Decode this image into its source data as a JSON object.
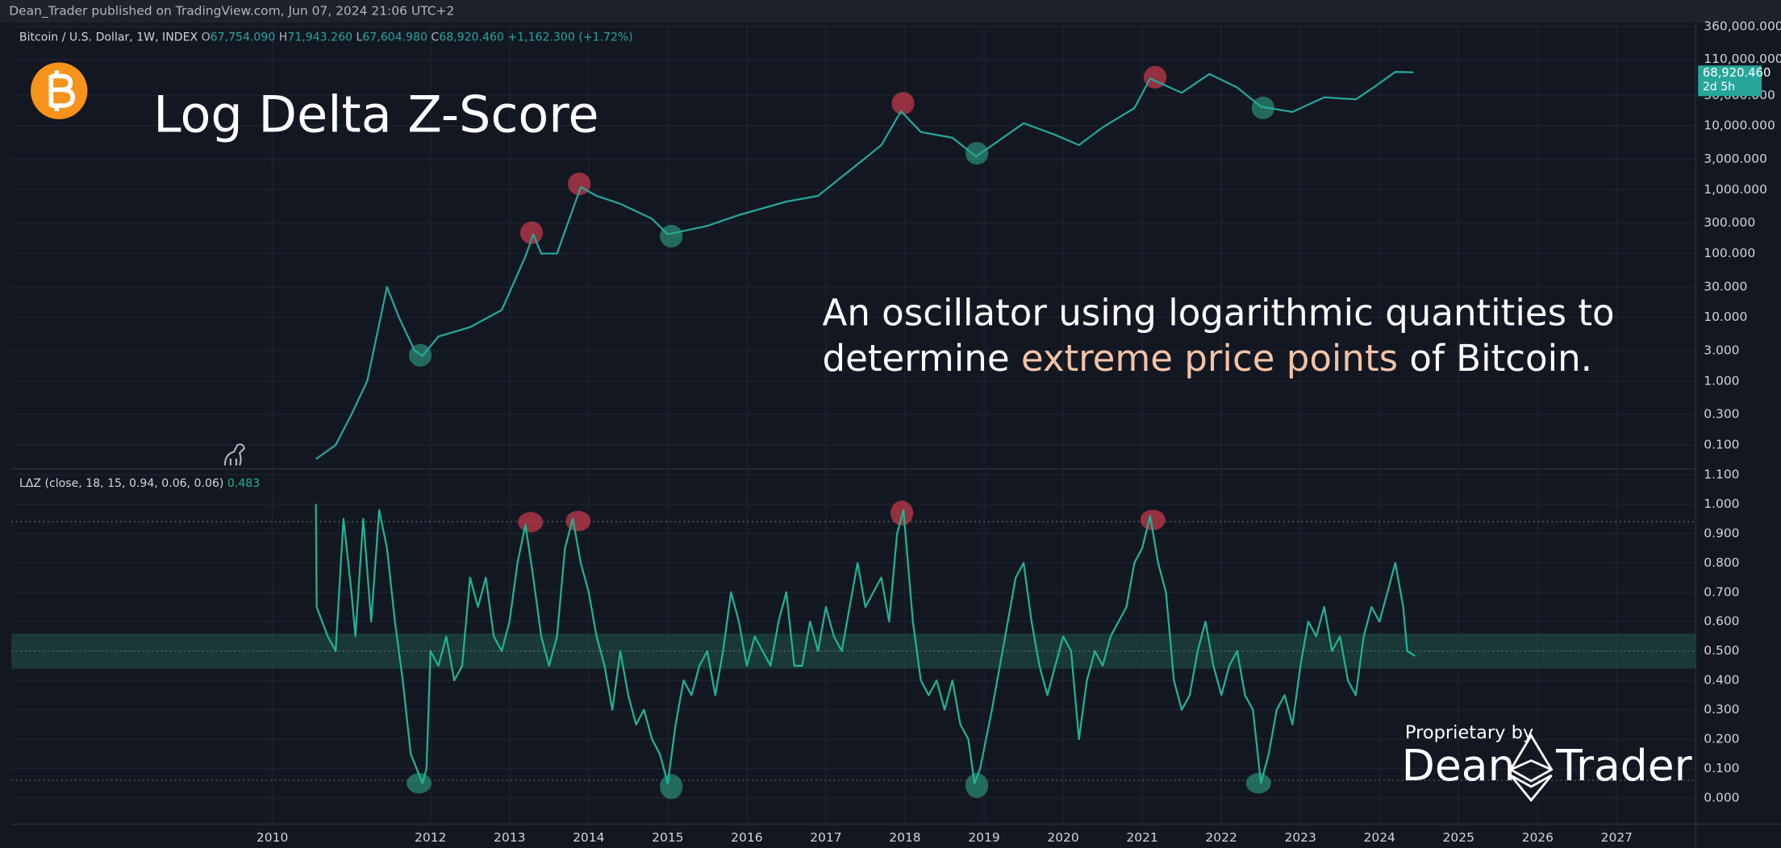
{
  "header": "Dean_Trader published on TradingView.com, Jun 07, 2024 21:06 UTC+2",
  "title": "Log Delta Z-Score",
  "description": [
    "An oscillator using logarithmic quantities to",
    "determine",
    "extreme price points",
    "of Bitcoin."
  ],
  "branding": {
    "by": "Proprietary by",
    "left": "Dean",
    "right": "Trader"
  },
  "chart_data": [
    {
      "type": "line",
      "name": "Bitcoin / U.S. Dollar, 1W, INDEX",
      "ohlc": [
        {
          "label": "O",
          "value": "67,754.090"
        },
        {
          "label": "H",
          "value": "71,943.260"
        },
        {
          "label": "L",
          "value": "67,604.980"
        },
        {
          "label": "C",
          "value": "68,920.460"
        }
      ],
      "change": "+1,162.300 (+1.72%)",
      "last_label": "68,920.460",
      "countdown": "2d 5h",
      "log_scale": true,
      "color": "#26a69a",
      "xlim": [
        2006.7,
        2028.0
      ],
      "ylim": [
        0.044,
        380000
      ],
      "yticks": [
        {
          "value": 360000,
          "label": "360,000.000"
        },
        {
          "value": 110000,
          "label": "110,000.000"
        },
        {
          "value": 30000,
          "label": "30,000.000"
        },
        {
          "value": 10000,
          "label": "10,000.000"
        },
        {
          "value": 3000,
          "label": "3,000.000"
        },
        {
          "value": 1000,
          "label": "1,000.000"
        },
        {
          "value": 300,
          "label": "300.000"
        },
        {
          "value": 100,
          "label": "100.000"
        },
        {
          "value": 30,
          "label": "30.000"
        },
        {
          "value": 10,
          "label": "10.000"
        },
        {
          "value": 3,
          "label": "3.000"
        },
        {
          "value": 1,
          "label": "1.000"
        },
        {
          "value": 0.3,
          "label": "0.300"
        },
        {
          "value": 0.1,
          "label": "0.100"
        }
      ],
      "x": [
        2010.55,
        2010.8,
        2011.0,
        2011.2,
        2011.4,
        2011.45,
        2011.6,
        2011.8,
        2011.9,
        2012.1,
        2012.5,
        2012.9,
        2013.2,
        2013.3,
        2013.4,
        2013.6,
        2013.9,
        2014.1,
        2014.4,
        2014.8,
        2015.0,
        2015.5,
        2015.9,
        2016.5,
        2016.9,
        2017.4,
        2017.7,
        2017.95,
        2018.2,
        2018.6,
        2018.9,
        2019.5,
        2019.9,
        2020.2,
        2020.5,
        2020.9,
        2021.1,
        2021.5,
        2021.85,
        2022.2,
        2022.5,
        2022.9,
        2023.3,
        2023.7,
        2023.95,
        2024.2,
        2024.43
      ],
      "values": [
        0.06,
        0.1,
        0.3,
        1,
        15,
        30,
        10,
        3,
        2.5,
        5,
        7,
        13,
        90,
        200,
        100,
        100,
        1100,
        800,
        600,
        350,
        200,
        270,
        400,
        650,
        800,
        2500,
        5000,
        17000,
        8000,
        6500,
        3300,
        11000,
        7200,
        5000,
        9500,
        19000,
        55000,
        33000,
        65000,
        40000,
        20000,
        16500,
        28000,
        26000,
        42000,
        70000,
        68920.46
      ]
    },
    {
      "type": "line",
      "name": "LΔZ (close, 18, 15, 0.94, 0.06, 0.06)",
      "last_value": "0.483",
      "color": "#1fb393",
      "xlim": [
        2006.7,
        2028.0
      ],
      "ylim": [
        -0.085,
        1.12
      ],
      "xticks": [
        2010,
        2012,
        2013,
        2014,
        2015,
        2016,
        2017,
        2018,
        2019,
        2020,
        2021,
        2022,
        2023,
        2024,
        2025,
        2026,
        2027
      ],
      "yticks": [
        {
          "value": 1.1,
          "label": "1.100"
        },
        {
          "value": 1.0,
          "label": "1.000"
        },
        {
          "value": 0.9,
          "label": "0.900"
        },
        {
          "value": 0.8,
          "label": "0.800"
        },
        {
          "value": 0.7,
          "label": "0.700"
        },
        {
          "value": 0.6,
          "label": "0.600"
        },
        {
          "value": 0.5,
          "label": "0.500"
        },
        {
          "value": 0.4,
          "label": "0.400"
        },
        {
          "value": 0.3,
          "label": "0.300"
        },
        {
          "value": 0.2,
          "label": "0.200"
        },
        {
          "value": 0.1,
          "label": "0.100"
        },
        {
          "value": 0,
          "label": "0.000"
        }
      ],
      "levels": [
        0.94,
        0.5,
        0.06
      ],
      "band": [
        0.44,
        0.56
      ],
      "x": [
        2010.55,
        2010.56,
        2010.7,
        2010.8,
        2010.9,
        2011.0,
        2011.05,
        2011.15,
        2011.25,
        2011.35,
        2011.45,
        2011.55,
        2011.65,
        2011.75,
        2011.9,
        2011.95,
        2012.0,
        2012.1,
        2012.2,
        2012.3,
        2012.4,
        2012.5,
        2012.6,
        2012.7,
        2012.8,
        2012.9,
        2013.0,
        2013.1,
        2013.2,
        2013.3,
        2013.4,
        2013.5,
        2013.6,
        2013.7,
        2013.8,
        2013.9,
        2014.0,
        2014.1,
        2014.2,
        2014.3,
        2014.4,
        2014.5,
        2014.6,
        2014.7,
        2014.8,
        2014.9,
        2015.0,
        2015.1,
        2015.2,
        2015.3,
        2015.4,
        2015.5,
        2015.6,
        2015.7,
        2015.8,
        2015.9,
        2016.0,
        2016.1,
        2016.2,
        2016.3,
        2016.4,
        2016.5,
        2016.6,
        2016.7,
        2016.8,
        2016.9,
        2017.0,
        2017.1,
        2017.2,
        2017.3,
        2017.4,
        2017.5,
        2017.6,
        2017.7,
        2017.8,
        2017.9,
        2017.98,
        2018.1,
        2018.2,
        2018.3,
        2018.4,
        2018.5,
        2018.6,
        2018.7,
        2018.8,
        2018.88,
        2018.95,
        2019.1,
        2019.2,
        2019.3,
        2019.4,
        2019.5,
        2019.6,
        2019.7,
        2019.8,
        2019.9,
        2020.0,
        2020.1,
        2020.2,
        2020.3,
        2020.4,
        2020.5,
        2020.6,
        2020.7,
        2020.8,
        2020.9,
        2021.0,
        2021.1,
        2021.2,
        2021.3,
        2021.4,
        2021.5,
        2021.6,
        2021.7,
        2021.8,
        2021.9,
        2022.0,
        2022.1,
        2022.2,
        2022.3,
        2022.4,
        2022.5,
        2022.6,
        2022.7,
        2022.8,
        2022.9,
        2023.0,
        2023.1,
        2023.2,
        2023.3,
        2023.4,
        2023.5,
        2023.6,
        2023.7,
        2023.8,
        2023.9,
        2024.0,
        2024.1,
        2024.2,
        2024.3,
        2024.35,
        2024.45
      ],
      "values": [
        1.0,
        0.65,
        0.55,
        0.5,
        0.95,
        0.7,
        0.55,
        0.95,
        0.6,
        0.98,
        0.85,
        0.6,
        0.4,
        0.15,
        0.05,
        0.1,
        0.5,
        0.45,
        0.55,
        0.4,
        0.45,
        0.75,
        0.65,
        0.75,
        0.55,
        0.5,
        0.6,
        0.8,
        0.93,
        0.75,
        0.55,
        0.45,
        0.55,
        0.85,
        0.95,
        0.8,
        0.7,
        0.55,
        0.45,
        0.3,
        0.5,
        0.35,
        0.25,
        0.3,
        0.2,
        0.15,
        0.05,
        0.25,
        0.4,
        0.35,
        0.45,
        0.5,
        0.35,
        0.5,
        0.7,
        0.6,
        0.45,
        0.55,
        0.5,
        0.45,
        0.6,
        0.7,
        0.45,
        0.45,
        0.6,
        0.5,
        0.65,
        0.55,
        0.5,
        0.65,
        0.8,
        0.65,
        0.7,
        0.75,
        0.6,
        0.9,
        0.98,
        0.6,
        0.4,
        0.35,
        0.4,
        0.3,
        0.4,
        0.25,
        0.2,
        0.05,
        0.1,
        0.3,
        0.45,
        0.6,
        0.75,
        0.8,
        0.6,
        0.45,
        0.35,
        0.45,
        0.55,
        0.5,
        0.2,
        0.4,
        0.5,
        0.45,
        0.55,
        0.6,
        0.65,
        0.8,
        0.85,
        0.96,
        0.8,
        0.7,
        0.4,
        0.3,
        0.35,
        0.5,
        0.6,
        0.45,
        0.35,
        0.45,
        0.5,
        0.35,
        0.3,
        0.05,
        0.15,
        0.3,
        0.35,
        0.25,
        0.45,
        0.6,
        0.55,
        0.65,
        0.5,
        0.55,
        0.4,
        0.35,
        0.55,
        0.65,
        0.6,
        0.7,
        0.8,
        0.65,
        0.5,
        0.483
      ]
    }
  ]
}
